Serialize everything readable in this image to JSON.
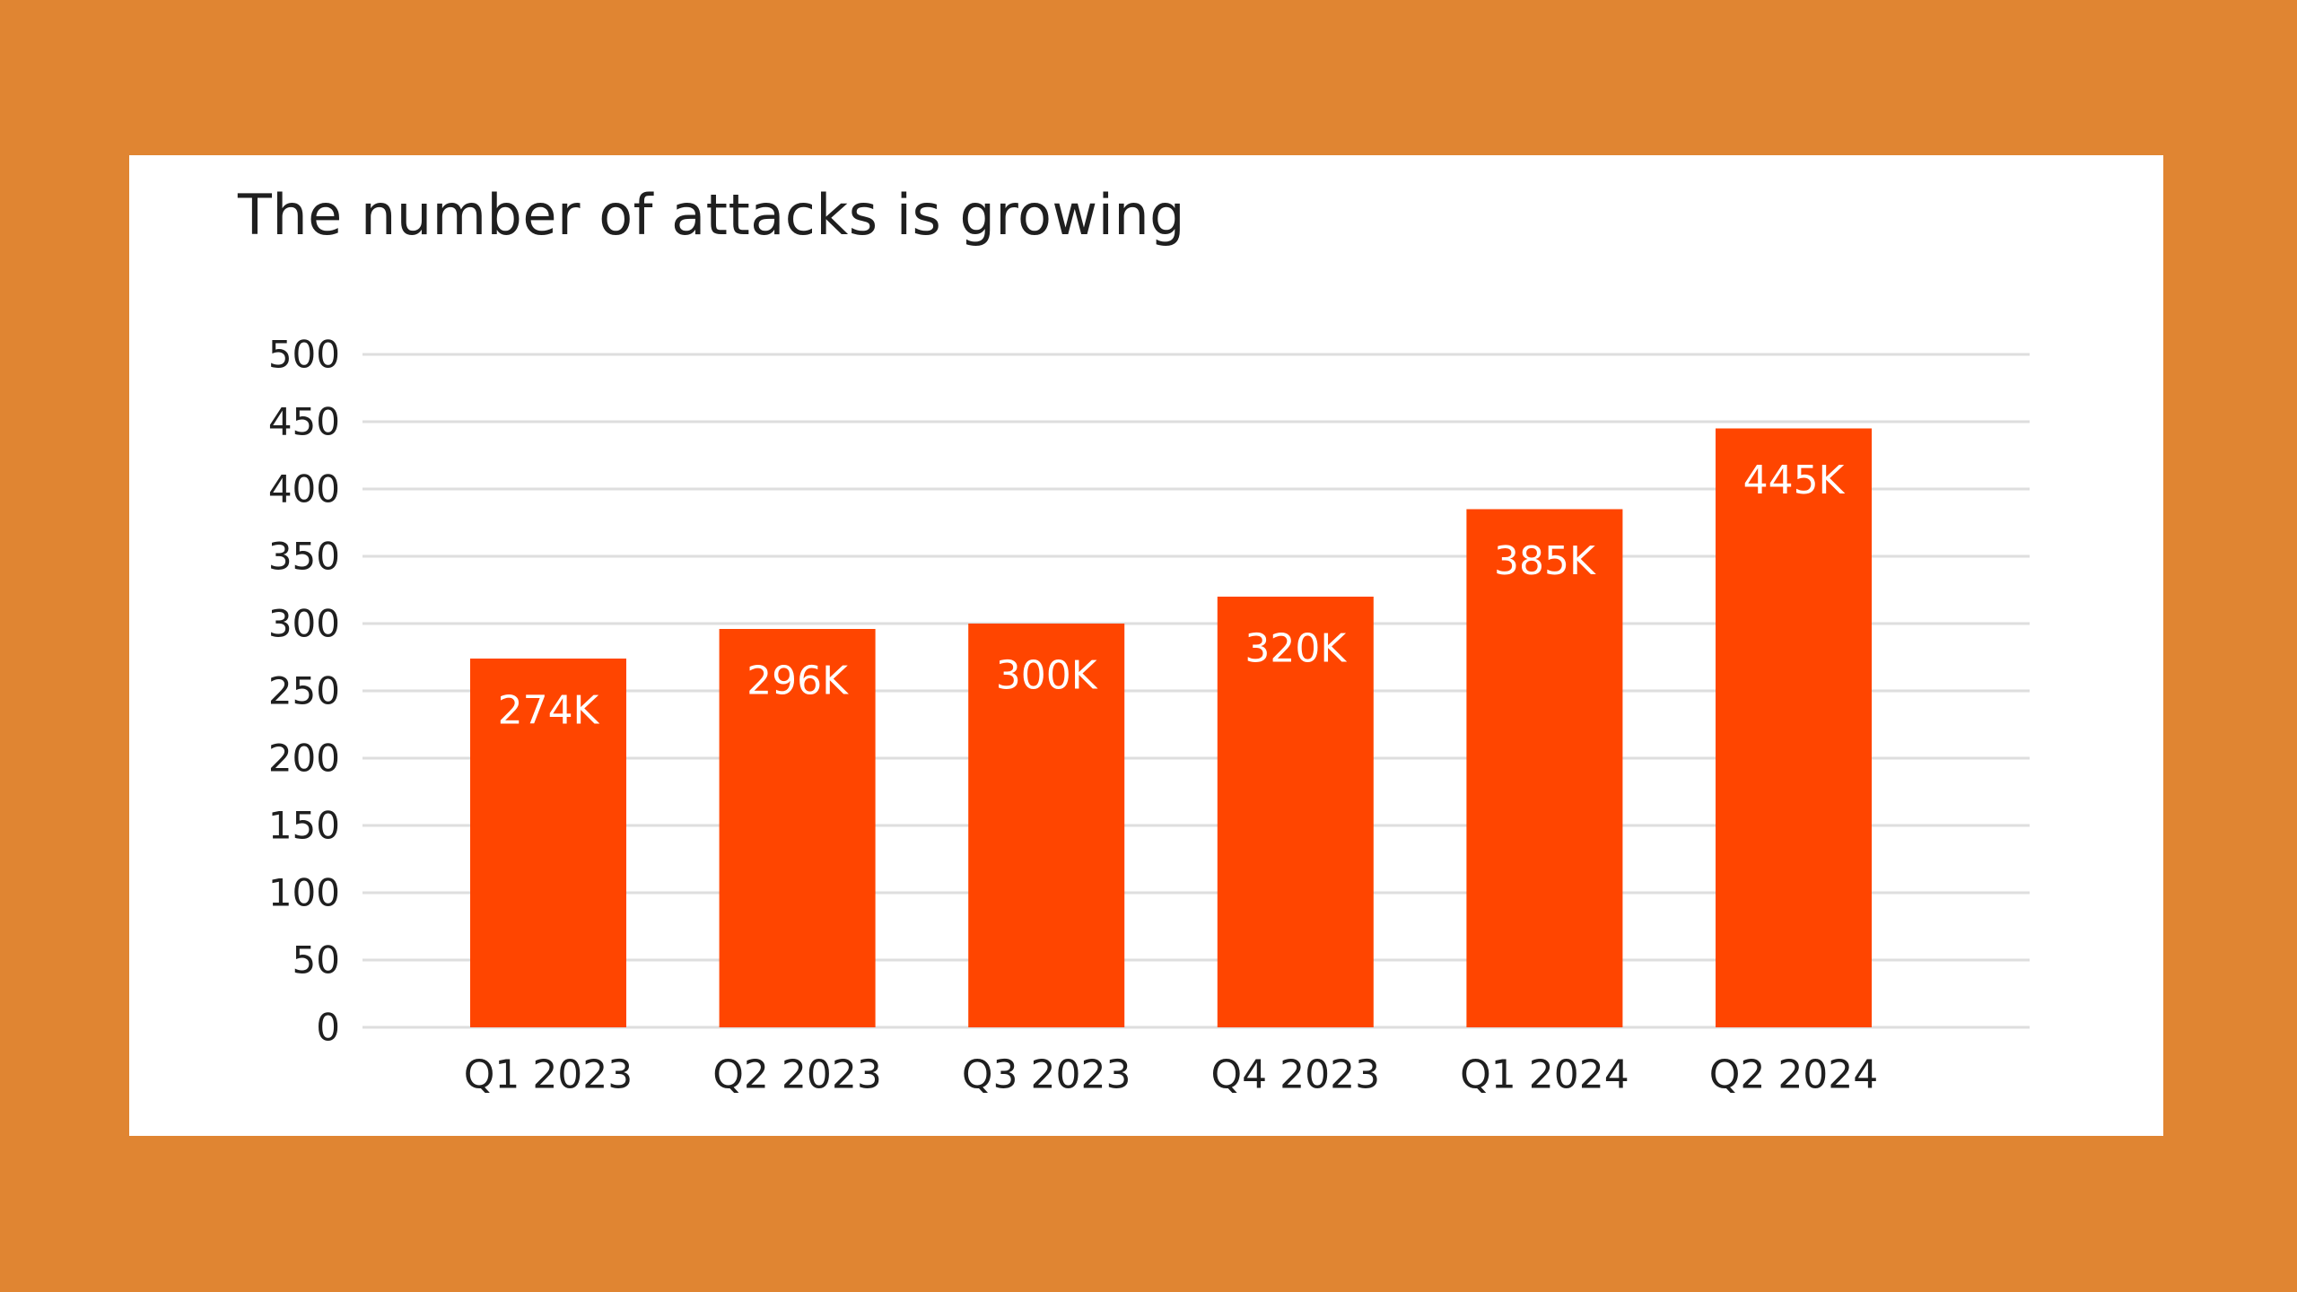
{
  "colors": {
    "background": "#E08532",
    "card": "#FFFFFF",
    "bar": "#FF4500",
    "gridline": "#DEDEDE",
    "text": "#1F1F1F",
    "bar_label": "#FFFFFF"
  },
  "chart_data": {
    "type": "bar",
    "title": "The number of attacks is growing",
    "xlabel": "",
    "ylabel": "",
    "categories": [
      "Q1 2023",
      "Q2 2023",
      "Q3 2023",
      "Q4 2023",
      "Q1 2024",
      "Q2 2024"
    ],
    "values": [
      274,
      296,
      300,
      320,
      385,
      445
    ],
    "data_labels": [
      "274K",
      "296K",
      "300K",
      "320K",
      "385K",
      "445K"
    ],
    "ylim": [
      0,
      500
    ],
    "y_ticks": [
      0,
      50,
      100,
      150,
      200,
      250,
      300,
      350,
      400,
      450,
      500
    ],
    "grid": true,
    "legend": "none"
  }
}
